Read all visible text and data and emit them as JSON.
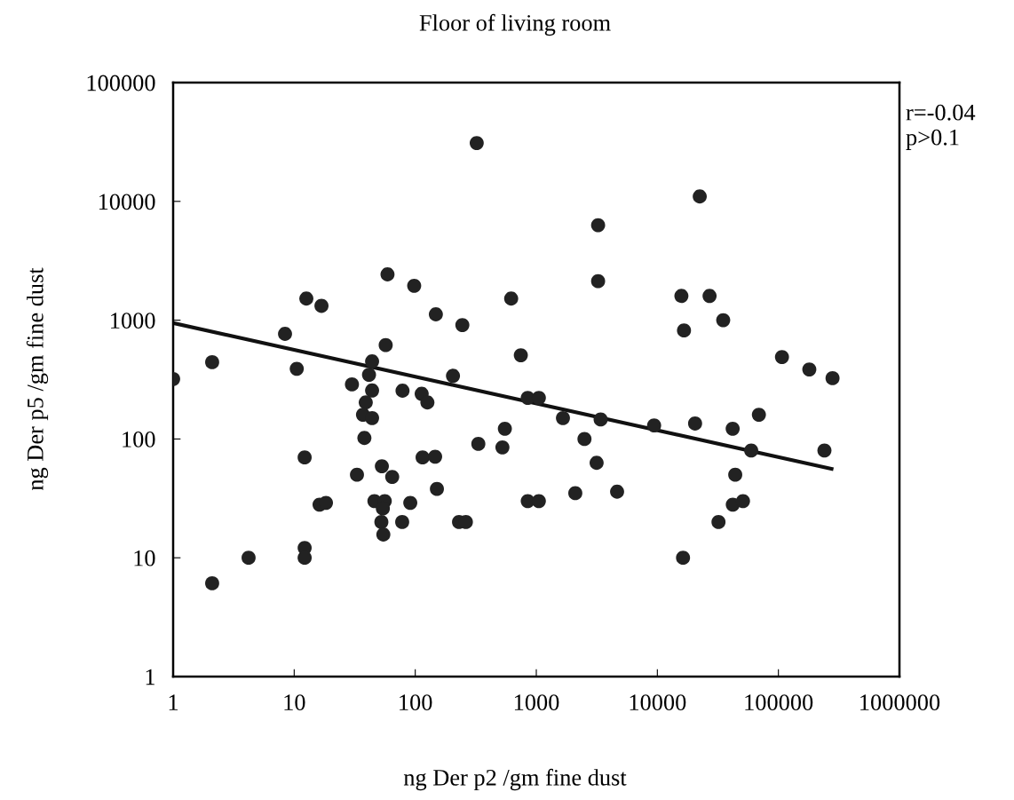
{
  "chart_data": {
    "type": "scatter",
    "title": "Floor of living room",
    "xlabel": "ng Der p2 /gm fine dust",
    "ylabel": "ng Der p5 /gm fine dust",
    "log": "xy",
    "xlim": [
      1,
      1000000
    ],
    "ylim": [
      1,
      100000
    ],
    "xticks": [
      1,
      10,
      100,
      1000,
      10000,
      100000,
      1000000
    ],
    "yticks": [
      1,
      10,
      100,
      1000,
      10000,
      100000
    ],
    "grid": false,
    "legend": false,
    "marker": "circle",
    "annotations": [
      "r=-0.04",
      "p>0.1"
    ],
    "series": [
      {
        "color": "#222222",
        "x": [
          322,
          59,
          98,
          12.6,
          16.8,
          620,
          148,
          245,
          8.4,
          57,
          745,
          2.1,
          10.5,
          1,
          44,
          41.5,
          205,
          30,
          850,
          1050,
          44,
          39,
          37,
          44,
          38,
          78.5,
          113,
          126,
          550,
          332,
          525,
          12.2,
          115,
          146,
          53,
          64.5,
          33,
          151,
          16.2,
          18.3,
          46,
          56,
          54,
          91,
          52.5,
          78,
          54.5,
          230,
          262,
          850,
          1050,
          12.2,
          12.2,
          4.2,
          2.1,
          22400,
          3240,
          3240,
          15800,
          27000,
          16600,
          35000,
          107000,
          180000,
          280000,
          1660,
          3400,
          2500,
          3150,
          2100,
          4650,
          9400,
          20500,
          41900,
          69000,
          59600,
          240000,
          44000,
          42000,
          51000,
          32000,
          16300
        ],
        "values": [
          31000,
          2430,
          1950,
          1520,
          1320,
          1520,
          1120,
          910,
          767,
          617,
          507,
          443,
          390,
          320,
          450,
          347,
          340,
          288,
          222,
          222,
          256,
          203,
          160,
          150,
          102,
          255,
          240,
          203,
          122,
          91,
          85,
          70,
          70,
          71,
          59,
          48,
          50,
          38,
          28,
          29,
          30,
          30,
          26,
          29,
          20,
          20,
          15.7,
          20,
          20,
          30,
          30,
          12.1,
          10,
          10,
          6.1,
          11000,
          6300,
          2130,
          1600,
          1600,
          820,
          1000,
          490,
          385,
          325,
          150,
          146,
          100,
          63,
          35,
          36,
          130,
          135,
          122,
          160,
          80,
          80,
          50,
          28,
          30,
          20,
          10
        ]
      },
      {
        "type": "line",
        "color": "#111111",
        "marker": "none",
        "line_style": "solid",
        "x": [
          1,
          275000
        ],
        "values": [
          945,
          56
        ]
      }
    ]
  }
}
